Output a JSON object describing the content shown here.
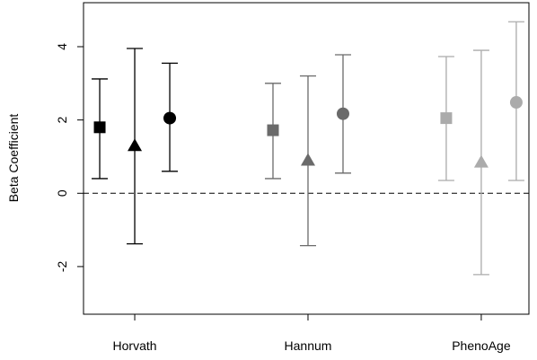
{
  "chart_data": {
    "type": "scatter",
    "subtype": "point-estimate-with-error-bars",
    "title": "",
    "xlabel": "",
    "ylabel": "Beta Coefficient",
    "ylim": [
      -3.3,
      5.2
    ],
    "yticks": [
      -2,
      0,
      2,
      4
    ],
    "categories": [
      "Horvath",
      "Hannum",
      "PhenoAge"
    ],
    "reference_line": {
      "y": 0,
      "style": "dashed"
    },
    "grid": false,
    "legend": "none",
    "groups": [
      {
        "category": "Horvath",
        "color": "#000000",
        "points": [
          {
            "marker": "square",
            "estimate": 1.8,
            "lower": 0.4,
            "upper": 3.12
          },
          {
            "marker": "triangle",
            "estimate": 1.3,
            "lower": -1.38,
            "upper": 3.95
          },
          {
            "marker": "circle",
            "estimate": 2.05,
            "lower": 0.6,
            "upper": 3.55
          }
        ]
      },
      {
        "category": "Hannum",
        "color": "#6a6a6a",
        "points": [
          {
            "marker": "square",
            "estimate": 1.72,
            "lower": 0.4,
            "upper": 3.0
          },
          {
            "marker": "triangle",
            "estimate": 0.9,
            "lower": -1.43,
            "upper": 3.2
          },
          {
            "marker": "circle",
            "estimate": 2.17,
            "lower": 0.55,
            "upper": 3.78
          }
        ]
      },
      {
        "category": "PhenoAge",
        "color": "#ababab",
        "points": [
          {
            "marker": "square",
            "estimate": 2.05,
            "lower": 0.35,
            "upper": 3.73
          },
          {
            "marker": "triangle",
            "estimate": 0.85,
            "lower": -2.22,
            "upper": 3.9
          },
          {
            "marker": "circle",
            "estimate": 2.48,
            "lower": 0.35,
            "upper": 4.68
          }
        ]
      }
    ]
  }
}
